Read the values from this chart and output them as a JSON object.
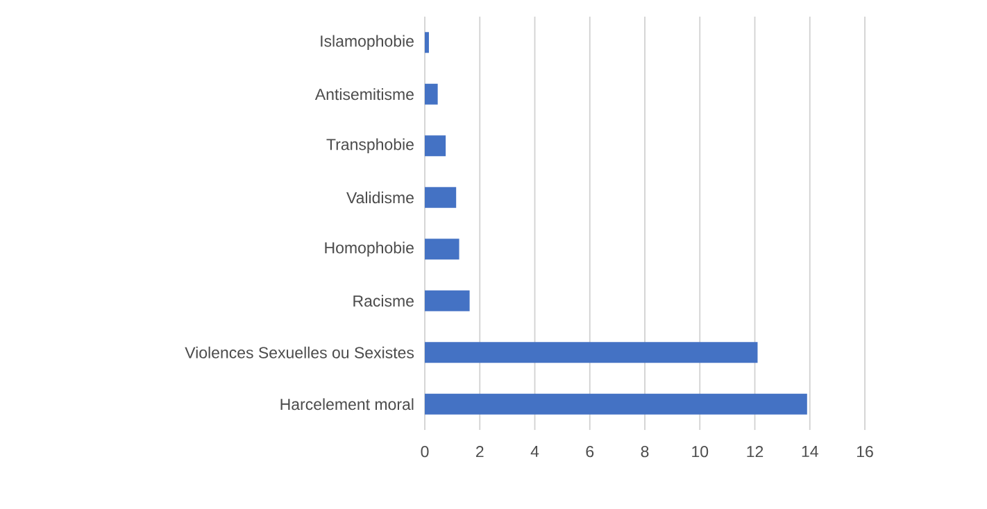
{
  "chart_data": {
    "type": "bar",
    "orientation": "horizontal",
    "categories": [
      "Islamophobie",
      "Antisemitisme",
      "Transphobie",
      "Validisme",
      "Homophobie",
      "Racisme",
      "Violences Sexuelles ou Sexistes",
      "Harcelement moral"
    ],
    "values": [
      0.15,
      0.47,
      0.76,
      1.14,
      1.25,
      1.63,
      12.1,
      13.9
    ],
    "color": "#4472c4",
    "xlim": [
      0,
      16
    ],
    "xticks": [
      0,
      2,
      4,
      6,
      8,
      10,
      12,
      14,
      16
    ],
    "grid": "x"
  }
}
